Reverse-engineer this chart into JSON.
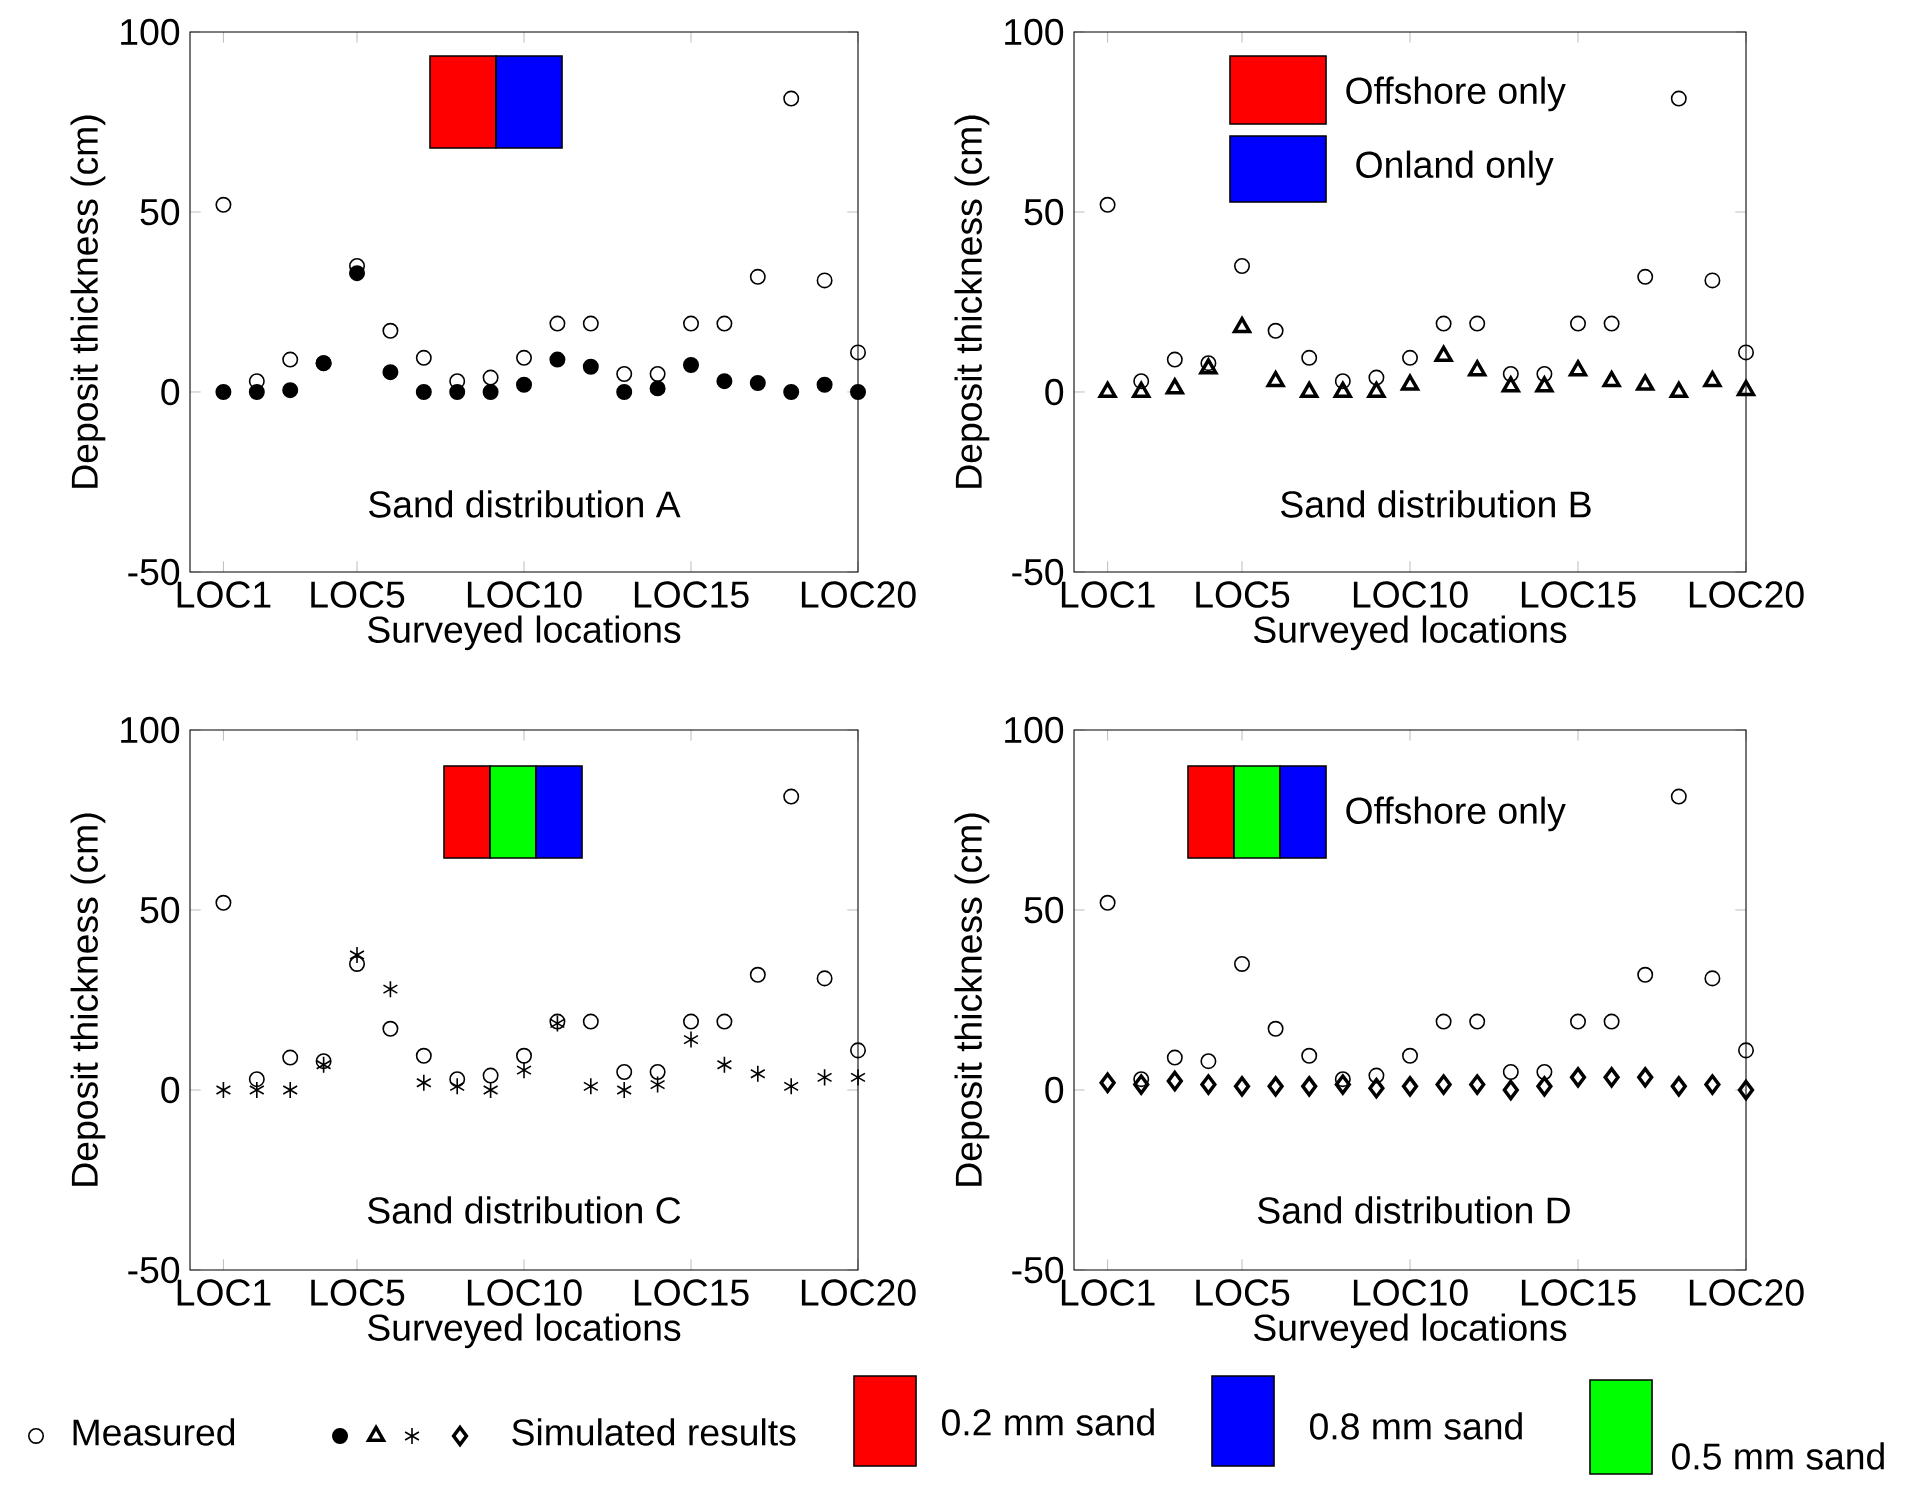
{
  "chart_data": [
    {
      "type": "scatter",
      "xlabel": "Surveyed locations",
      "ylabel": "Deposit thickness (cm)",
      "categories": [
        "LOC1",
        null,
        null,
        null,
        "LOC5",
        null,
        null,
        null,
        null,
        "LOC10",
        null,
        null,
        null,
        null,
        "LOC15",
        null,
        null,
        null,
        null,
        "LOC20"
      ],
      "ylim": [
        -50,
        100
      ],
      "yticks": [
        -50,
        0,
        50,
        100
      ],
      "series": [
        {
          "color": "#000000",
          "marker": "circle",
          "values": [
            52,
            3,
            9,
            8,
            35,
            17,
            9.5,
            3,
            4,
            9.5,
            19,
            19,
            5,
            5,
            19,
            19,
            32,
            81.5,
            31,
            11
          ]
        },
        {
          "color": "#000000",
          "marker": "circle",
          "values": [
            0,
            0,
            0.5,
            8,
            33,
            5.5,
            0,
            0,
            0,
            2,
            9,
            7,
            0,
            1,
            7.5,
            3,
            2.5,
            0,
            2,
            0
          ]
        }
      ],
      "annotations": [
        "Sand distribution A"
      ]
    },
    {
      "type": "scatter",
      "xlabel": "Surveyed locations",
      "ylabel": "Deposit thickness (cm)",
      "categories": [
        "LOC1",
        null,
        null,
        null,
        "LOC5",
        null,
        null,
        null,
        null,
        "LOC10",
        null,
        null,
        null,
        null,
        "LOC15",
        null,
        null,
        null,
        null,
        "LOC20"
      ],
      "ylim": [
        -50,
        100
      ],
      "yticks": [
        -50,
        0,
        50,
        100
      ],
      "series": [
        {
          "color": "#000000",
          "marker": "circle",
          "values": [
            52,
            3,
            9,
            8,
            35,
            17,
            9.5,
            3,
            4,
            9.5,
            19,
            19,
            5,
            5,
            19,
            19,
            32,
            81.5,
            31,
            11
          ]
        },
        {
          "color": "#000000",
          "marker": "triangle",
          "values": [
            0,
            0,
            1,
            6.5,
            18,
            3,
            0,
            0,
            0,
            2,
            10,
            6,
            1.5,
            1.5,
            6,
            3,
            2,
            0,
            3,
            0.5
          ]
        }
      ],
      "annotations": [
        "Sand distribution B",
        "Offshore only",
        "Onland only"
      ]
    },
    {
      "type": "scatter",
      "xlabel": "Surveyed locations",
      "ylabel": "Deposit thickness (cm)",
      "categories": [
        "LOC1",
        null,
        null,
        null,
        "LOC5",
        null,
        null,
        null,
        null,
        "LOC10",
        null,
        null,
        null,
        null,
        "LOC15",
        null,
        null,
        null,
        null,
        "LOC20"
      ],
      "ylim": [
        -50,
        100
      ],
      "yticks": [
        -50,
        0,
        50,
        100
      ],
      "series": [
        {
          "color": "#000000",
          "marker": "circle",
          "values": [
            52,
            3,
            9,
            8,
            35,
            17,
            9.5,
            3,
            4,
            9.5,
            19,
            19,
            5,
            5,
            19,
            19,
            32,
            81.5,
            31,
            11
          ]
        },
        {
          "color": "#000000",
          "marker": "cross",
          "values": [
            0,
            0,
            0,
            7,
            37.5,
            28,
            2,
            1,
            0,
            5.5,
            18.5,
            1,
            0,
            1.5,
            14,
            7,
            4.5,
            1,
            3.5,
            3.5
          ]
        }
      ],
      "annotations": [
        "Sand distribution C"
      ]
    },
    {
      "type": "scatter",
      "xlabel": "Surveyed locations",
      "ylabel": "Deposit thickness (cm)",
      "categories": [
        "LOC1",
        null,
        null,
        null,
        "LOC5",
        null,
        null,
        null,
        null,
        "LOC10",
        null,
        null,
        null,
        null,
        "LOC15",
        null,
        null,
        null,
        null,
        "LOC20"
      ],
      "ylim": [
        -50,
        100
      ],
      "yticks": [
        -50,
        0,
        50,
        100
      ],
      "legend": "bottom",
      "series": [
        {
          "name": "Measured",
          "color": "#000000",
          "marker": "circle",
          "values": [
            52,
            3,
            9,
            8,
            35,
            17,
            9.5,
            3,
            4,
            9.5,
            19,
            19,
            5,
            5,
            19,
            19,
            32,
            81.5,
            31,
            11
          ]
        },
        {
          "name": "Simulated results",
          "color": "#000000",
          "marker": "diamond",
          "values": [
            2,
            1.5,
            2.5,
            1.5,
            1,
            1,
            1,
            1.5,
            0.5,
            1,
            1.5,
            1.5,
            0,
            1,
            3.5,
            3.5,
            3.5,
            1,
            1.5,
            0
          ]
        }
      ],
      "annotations": [
        "Sand distribution D",
        "Offshore only",
        "0.2 mm sand",
        "0.8 mm sand",
        "0.5 mm sand"
      ]
    }
  ]
}
